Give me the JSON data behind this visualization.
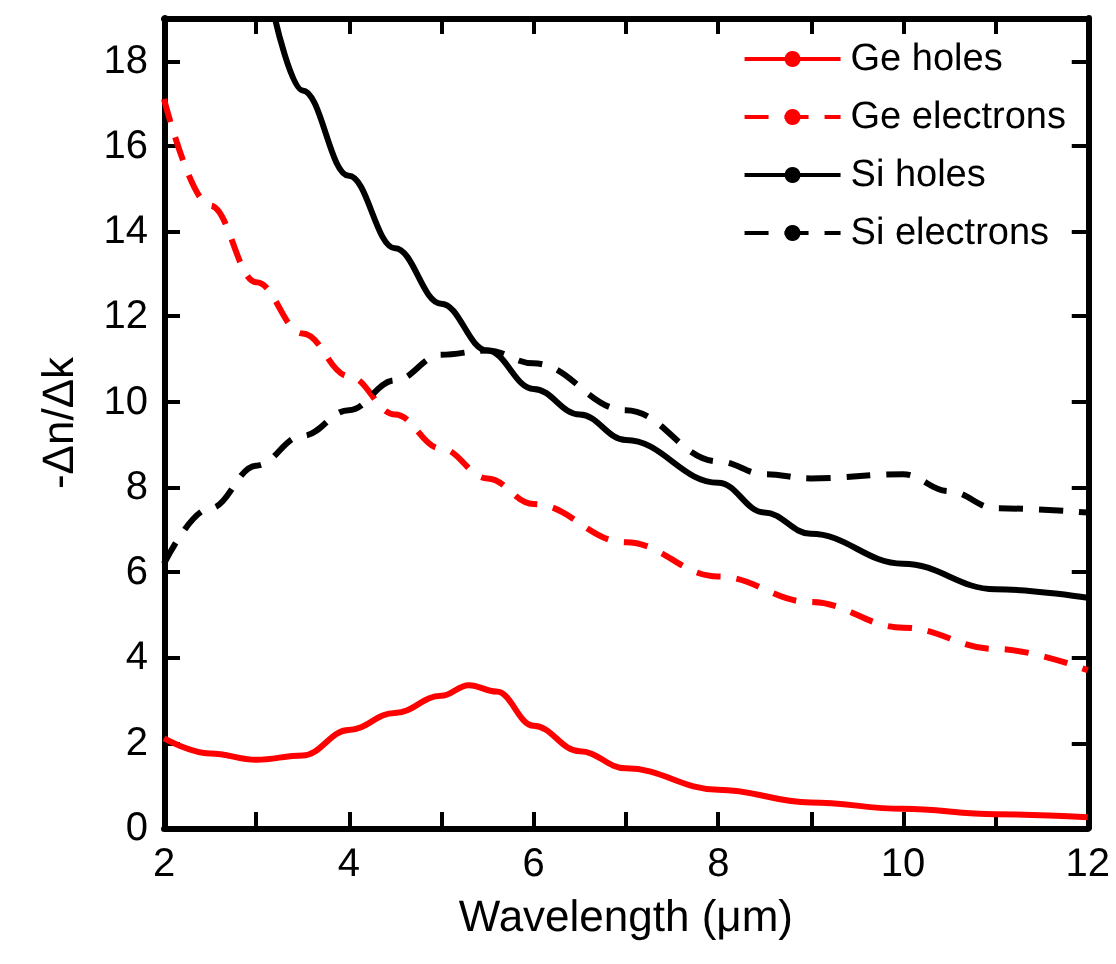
{
  "chart_data": {
    "type": "line",
    "xlabel": "Wavelength (μm)",
    "ylabel": "-Δn/Δk",
    "xlim": [
      2,
      12
    ],
    "xticks": [
      2,
      {
        "value": 3,
        "label": null
      },
      4,
      {
        "value": 5,
        "label": null
      },
      6,
      {
        "value": 7,
        "label": null
      },
      8,
      {
        "value": 9,
        "label": null
      },
      10,
      {
        "value": 11,
        "label": null
      },
      12
    ],
    "ylim": [
      0,
      19
    ],
    "yticks": [
      0,
      2,
      4,
      6,
      8,
      10,
      12,
      14,
      16,
      18
    ],
    "grid": false,
    "legend": "top right",
    "marker": "none",
    "series": [
      {
        "name": "Ge holes",
        "color": "#ff0000",
        "line_style": "solid",
        "x": [
          2,
          2.5,
          3,
          3.5,
          4,
          4.5,
          5,
          5.3,
          5.6,
          6,
          6.5,
          7,
          8,
          9,
          10,
          11,
          12
        ],
        "values": [
          2.1,
          1.75,
          1.6,
          1.7,
          2.3,
          2.7,
          3.1,
          3.35,
          3.2,
          2.4,
          1.8,
          1.4,
          0.9,
          0.6,
          0.45,
          0.32,
          0.25
        ]
      },
      {
        "name": "Ge electrons",
        "color": "#ff0000",
        "line_style": "dashed",
        "x": [
          2,
          2.5,
          3,
          3.5,
          4,
          4.5,
          5,
          5.5,
          6,
          7,
          8,
          9,
          10,
          11,
          12
        ],
        "values": [
          17.1,
          14.6,
          12.8,
          11.6,
          10.6,
          9.7,
          8.9,
          8.2,
          7.6,
          6.7,
          5.9,
          5.3,
          4.7,
          4.2,
          3.7
        ]
      },
      {
        "name": "Si holes",
        "color": "#000000",
        "line_style": "solid",
        "x": [
          3.2,
          3.5,
          4,
          4.5,
          5,
          5.5,
          6,
          6.5,
          7,
          8,
          8.5,
          9,
          10,
          11,
          12
        ],
        "values": [
          19,
          17.3,
          15.3,
          13.6,
          12.3,
          11.2,
          10.3,
          9.7,
          9.1,
          8.1,
          7.4,
          6.9,
          6.2,
          5.6,
          5.4
        ]
      },
      {
        "name": "Si electrons",
        "color": "#000000",
        "line_style": "dashed",
        "x": [
          2,
          2.5,
          3,
          3.5,
          4,
          4.5,
          5,
          5.5,
          6,
          7,
          8,
          8.5,
          9,
          10,
          10.5,
          11,
          12
        ],
        "values": [
          6.2,
          7.5,
          8.5,
          9.2,
          9.8,
          10.5,
          11.1,
          11.2,
          10.9,
          9.8,
          8.6,
          8.3,
          8.2,
          8.3,
          7.9,
          7.5,
          7.4
        ]
      }
    ]
  }
}
